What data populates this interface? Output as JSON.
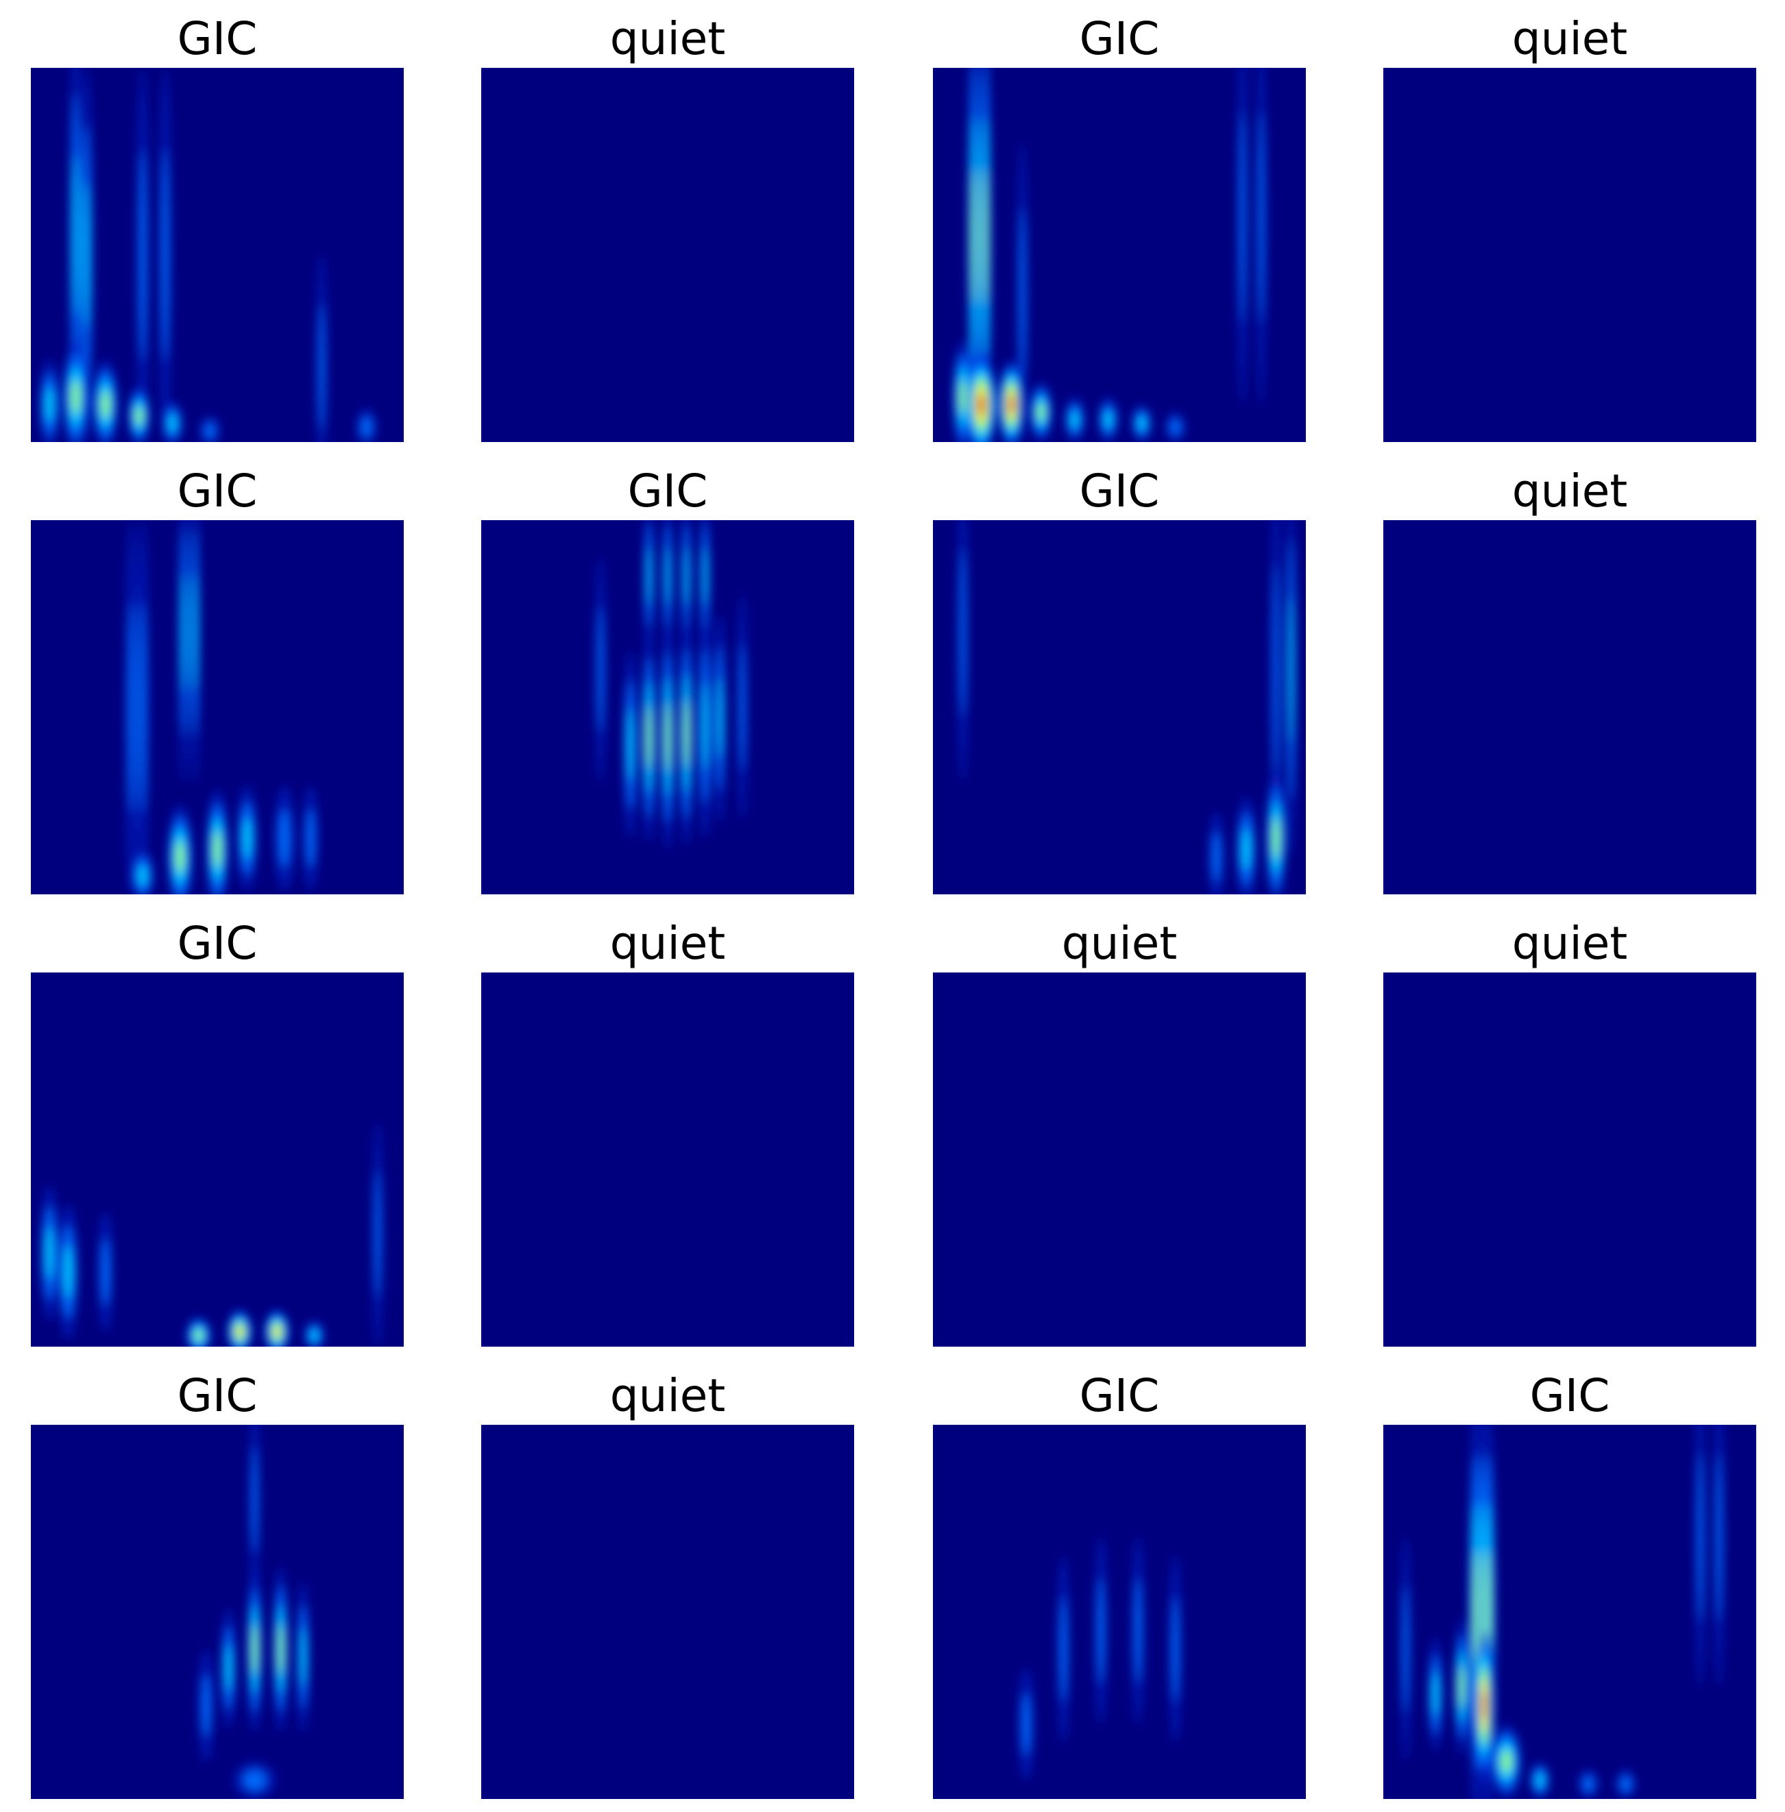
{
  "panels": [
    {
      "label": "GIC"
    },
    {
      "label": "quiet"
    },
    {
      "label": "GIC"
    },
    {
      "label": "quiet"
    },
    {
      "label": "GIC"
    },
    {
      "label": "GIC"
    },
    {
      "label": "GIC"
    },
    {
      "label": "quiet"
    },
    {
      "label": "GIC"
    },
    {
      "label": "quiet"
    },
    {
      "label": "quiet"
    },
    {
      "label": "quiet"
    },
    {
      "label": "GIC"
    },
    {
      "label": "quiet"
    },
    {
      "label": "GIC"
    },
    {
      "label": "GIC"
    }
  ]
}
